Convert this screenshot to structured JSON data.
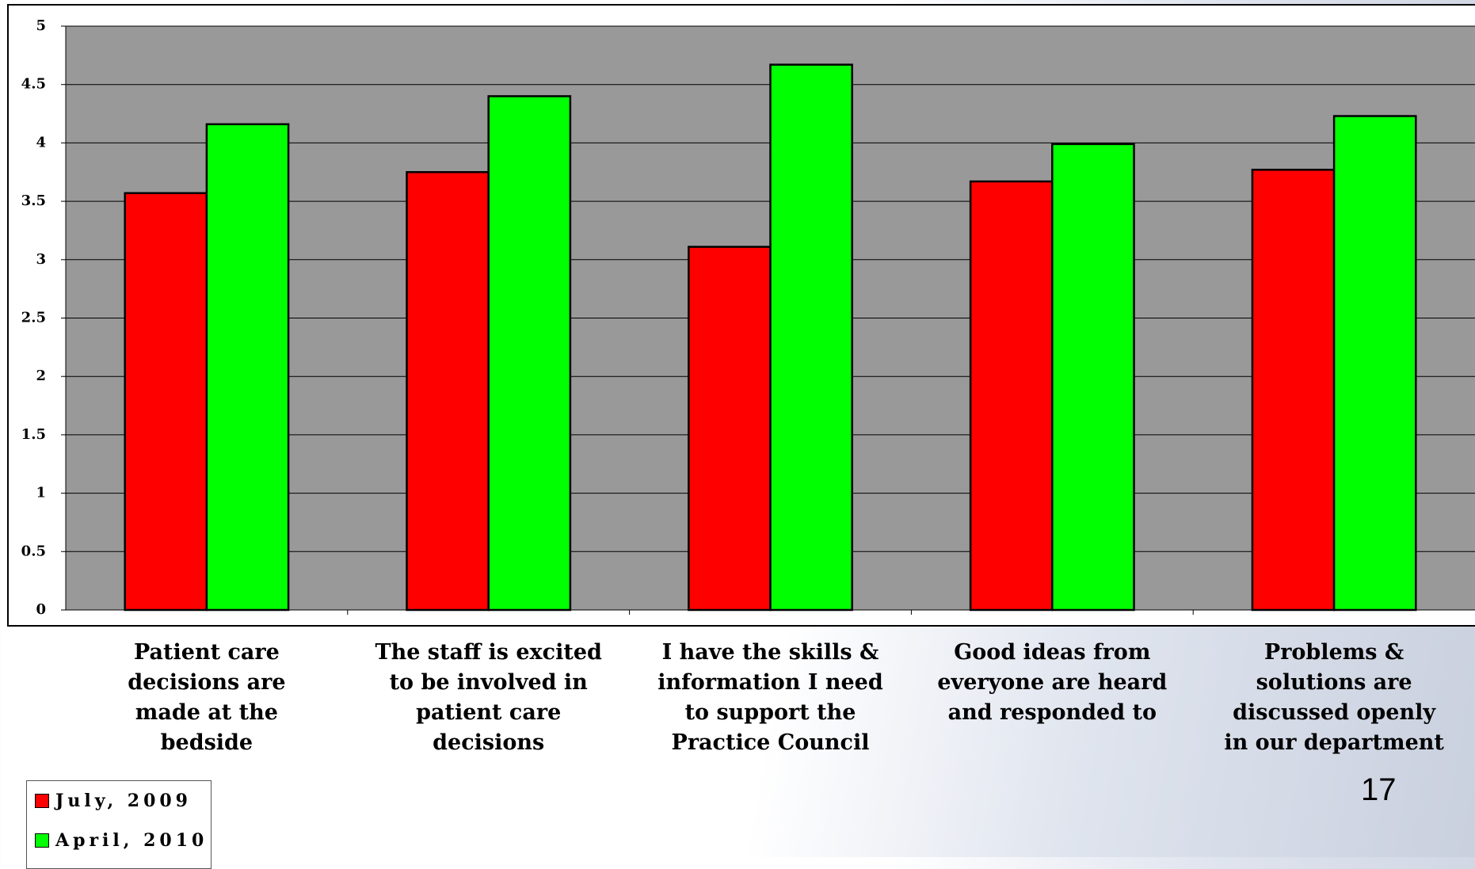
{
  "chart_data": {
    "type": "bar",
    "categories": [
      "Patient care decisions are made at the bedside",
      "The staff is excited to be involved in patient care decisions",
      "I have the skills & information I need to support the Practice Council",
      "Good ideas from everyone are heard and responded to",
      "Problems & solutions are discussed openly in our department"
    ],
    "series": [
      {
        "name": "July, 2009",
        "color": "#ff0000",
        "values": [
          3.57,
          3.75,
          3.11,
          3.67,
          3.77
        ]
      },
      {
        "name": "April, 2010",
        "color": "#00ff00",
        "values": [
          4.16,
          4.4,
          4.67,
          3.99,
          4.23
        ]
      }
    ],
    "ylim": [
      0,
      5
    ],
    "yticks": [
      0,
      0.5,
      1,
      1.5,
      2,
      2.5,
      3,
      3.5,
      4,
      4.5,
      5
    ],
    "grid": true,
    "legend": "bottom-left"
  },
  "slide_number": "17"
}
